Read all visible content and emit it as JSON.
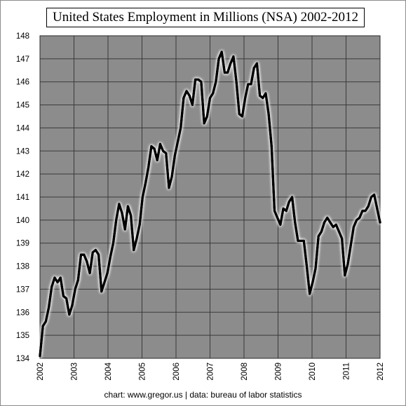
{
  "title": "United States Employment in Millions (NSA) 2002-2012",
  "credit": "chart:  www.gregor.us  |  data:  bureau of labor statistics",
  "colors": {
    "plot_bg": "#8c8c8c",
    "grid": "#3a3a3a",
    "line": "#000000",
    "glow": "#ffffff"
  },
  "chart_data": {
    "type": "line",
    "title": "United States Employment in Millions (NSA) 2002-2012",
    "xlabel": "",
    "ylabel": "",
    "xlim": [
      2002,
      2012
    ],
    "ylim": [
      134,
      148
    ],
    "x_ticks": [
      "2002",
      "2003",
      "2004",
      "2005",
      "2006",
      "2007",
      "2008",
      "2009",
      "2010",
      "2011",
      "2012"
    ],
    "y_ticks": [
      134,
      135,
      136,
      137,
      138,
      139,
      140,
      141,
      142,
      143,
      144,
      145,
      146,
      147,
      148
    ],
    "grid": true,
    "legend": "none",
    "series": [
      {
        "values": [
          134.1,
          135.4,
          135.6,
          136.2,
          137.1,
          137.5,
          137.3,
          137.5,
          136.7,
          136.6,
          135.9,
          136.3,
          137.0,
          137.4,
          138.5,
          138.5,
          138.2,
          137.7,
          138.6,
          138.7,
          138.5,
          136.9,
          137.3,
          137.7,
          138.4,
          139.0,
          140.0,
          140.7,
          140.3,
          139.6,
          140.6,
          140.2,
          138.7,
          139.2,
          139.8,
          141.0,
          141.6,
          142.3,
          143.2,
          143.1,
          142.6,
          143.3,
          143.0,
          142.9,
          141.4,
          141.9,
          142.8,
          143.4,
          144.0,
          145.3,
          145.6,
          145.4,
          145.0,
          146.1,
          146.1,
          146.0,
          144.2,
          144.5,
          145.3,
          145.5,
          146.0,
          147.0,
          147.3,
          146.4,
          146.4,
          146.8,
          147.1,
          146.0,
          144.6,
          144.5,
          145.3,
          145.9,
          145.9,
          146.6,
          146.8,
          145.4,
          145.3,
          145.5,
          144.6,
          143.2,
          140.4,
          140.1,
          139.8,
          140.5,
          140.4,
          140.8,
          141.0,
          139.9,
          139.1,
          139.1,
          139.1,
          138.0,
          136.8,
          137.3,
          137.9,
          139.3,
          139.5,
          139.9,
          140.1,
          139.9,
          139.7,
          139.8,
          139.5,
          139.2,
          137.6,
          138.1,
          138.9,
          139.7,
          140.0,
          140.1,
          140.4,
          140.4,
          140.6,
          141.0,
          141.1,
          140.5,
          139.9
        ]
      }
    ]
  }
}
